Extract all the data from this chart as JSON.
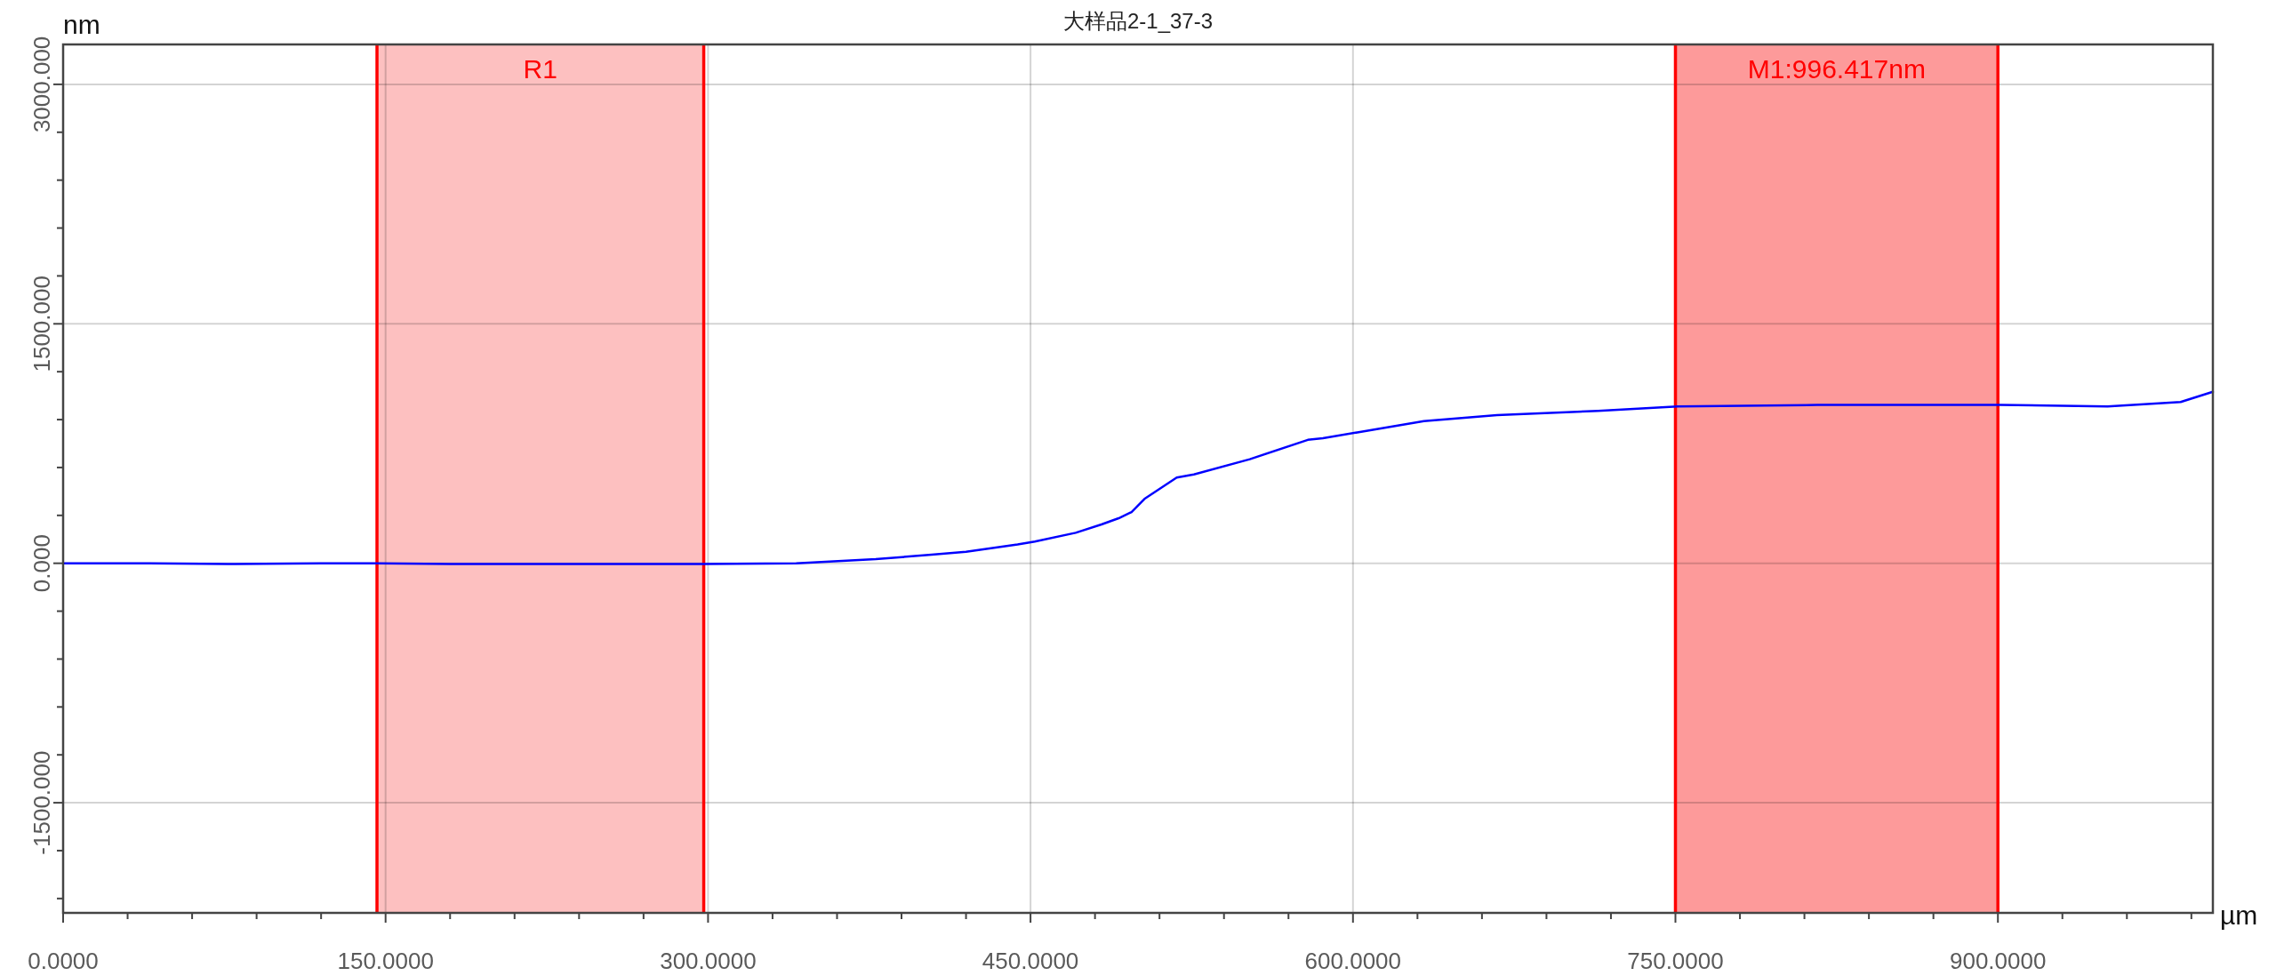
{
  "chart_data": {
    "type": "line",
    "title": "大样品2-1_37-3",
    "xlabel": "µm",
    "ylabel": "nm",
    "xlim": [
      0,
      1000
    ],
    "ylim": [
      -2190,
      3250
    ],
    "xticks": [
      {
        "value": 0,
        "label": "0.0000"
      },
      {
        "value": 30,
        "label": null
      },
      {
        "value": 60,
        "label": null
      },
      {
        "value": 90,
        "label": null
      },
      {
        "value": 120,
        "label": null
      },
      {
        "value": 150,
        "label": "150.0000"
      },
      {
        "value": 180,
        "label": null
      },
      {
        "value": 210,
        "label": null
      },
      {
        "value": 240,
        "label": null
      },
      {
        "value": 270,
        "label": null
      },
      {
        "value": 300,
        "label": "300.0000"
      },
      {
        "value": 330,
        "label": null
      },
      {
        "value": 360,
        "label": null
      },
      {
        "value": 390,
        "label": null
      },
      {
        "value": 420,
        "label": null
      },
      {
        "value": 450,
        "label": "450.0000"
      },
      {
        "value": 480,
        "label": null
      },
      {
        "value": 510,
        "label": null
      },
      {
        "value": 540,
        "label": null
      },
      {
        "value": 570,
        "label": null
      },
      {
        "value": 600,
        "label": "600.0000"
      },
      {
        "value": 630,
        "label": null
      },
      {
        "value": 660,
        "label": null
      },
      {
        "value": 690,
        "label": null
      },
      {
        "value": 720,
        "label": null
      },
      {
        "value": 750,
        "label": "750.0000"
      },
      {
        "value": 780,
        "label": null
      },
      {
        "value": 810,
        "label": null
      },
      {
        "value": 840,
        "label": null
      },
      {
        "value": 870,
        "label": null
      },
      {
        "value": 900,
        "label": "900.0000"
      },
      {
        "value": 930,
        "label": null
      },
      {
        "value": 960,
        "label": null
      },
      {
        "value": 990,
        "label": null
      }
    ],
    "yticks": [
      {
        "value": -2100,
        "label": null
      },
      {
        "value": -1800,
        "label": null
      },
      {
        "value": -1500,
        "label": "-1500.000"
      },
      {
        "value": -1200,
        "label": null
      },
      {
        "value": -900,
        "label": null
      },
      {
        "value": -600,
        "label": null
      },
      {
        "value": -300,
        "label": null
      },
      {
        "value": 0,
        "label": "0.000"
      },
      {
        "value": 300,
        "label": null
      },
      {
        "value": 600,
        "label": null
      },
      {
        "value": 900,
        "label": null
      },
      {
        "value": 1200,
        "label": null
      },
      {
        "value": 1500,
        "label": "1500.000"
      },
      {
        "value": 1800,
        "label": null
      },
      {
        "value": 2100,
        "label": null
      },
      {
        "value": 2400,
        "label": null
      },
      {
        "value": 2700,
        "label": null
      },
      {
        "value": 3000,
        "label": "3000.000"
      }
    ],
    "grid": true,
    "bands": [
      {
        "axis": "x",
        "from": 146,
        "to": 298,
        "label": "R1",
        "color": "#fdc0c0"
      },
      {
        "axis": "x",
        "from": 750,
        "to": 900,
        "label": "M1:996.417nm",
        "color": "#fd9a9a"
      }
    ],
    "series": [
      {
        "color": "#0000ff",
        "x": [
          0,
          40,
          80,
          120,
          146,
          180,
          220,
          260,
          298,
          341,
          378,
          404,
          420,
          444,
          452,
          471,
          483,
          491,
          497,
          503,
          518,
          526,
          552,
          579,
          586,
          602,
          633,
          667,
          714,
          751,
          816,
          860,
          901,
          951,
          985,
          1000
        ],
        "values": [
          0,
          0,
          -5,
          0,
          0,
          -5,
          -5,
          -5,
          -5,
          0,
          26,
          54,
          72,
          118,
          136,
          191,
          243,
          282,
          321,
          403,
          537,
          556,
          652,
          773,
          783,
          820,
          890,
          928,
          955,
          983,
          992,
          992,
          992,
          983,
          1010,
          1074
        ]
      }
    ]
  }
}
